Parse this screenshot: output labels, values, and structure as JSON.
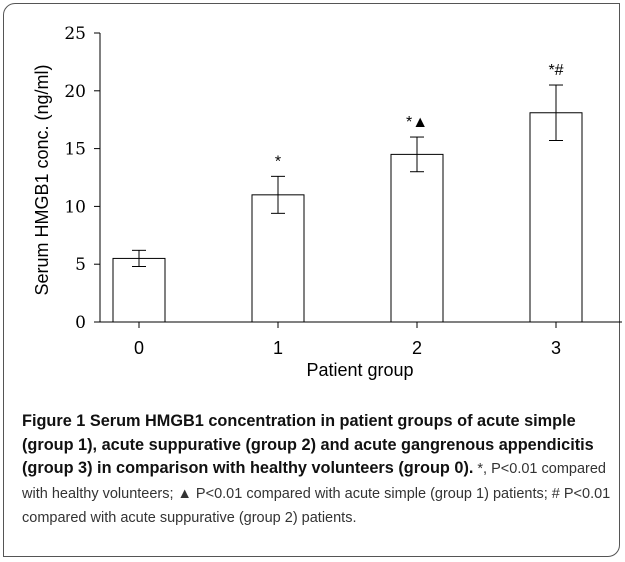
{
  "chart_data": {
    "type": "bar",
    "categories": [
      "0",
      "1",
      "2",
      "3"
    ],
    "values": [
      5.5,
      11.0,
      14.5,
      18.1
    ],
    "errors": [
      0.7,
      1.6,
      1.5,
      2.4
    ],
    "annotations": [
      "",
      "*",
      "*▲",
      "*#"
    ],
    "xlabel": "Patient group",
    "ylabel": "Serum HMGB1 conc. (ng/ml)",
    "ylim": [
      0,
      25
    ],
    "yticks": [
      0,
      5,
      10,
      15,
      20,
      25
    ],
    "grid": false,
    "legend": "none"
  },
  "caption": {
    "title": "Figure 1 Serum HMGB1 concentration in patient groups of acute simple (group 1), acute suppurative (group 2) and acute gangrenous appendicitis (group 3) in comparison with healthy volunteers (group 0).",
    "body": " *, P<0.01 compared with healthy volunteers; ▲ P<0.01 compared with acute simple (group 1) patients; # P<0.01 compared with acute suppurative (group 2) patients."
  }
}
